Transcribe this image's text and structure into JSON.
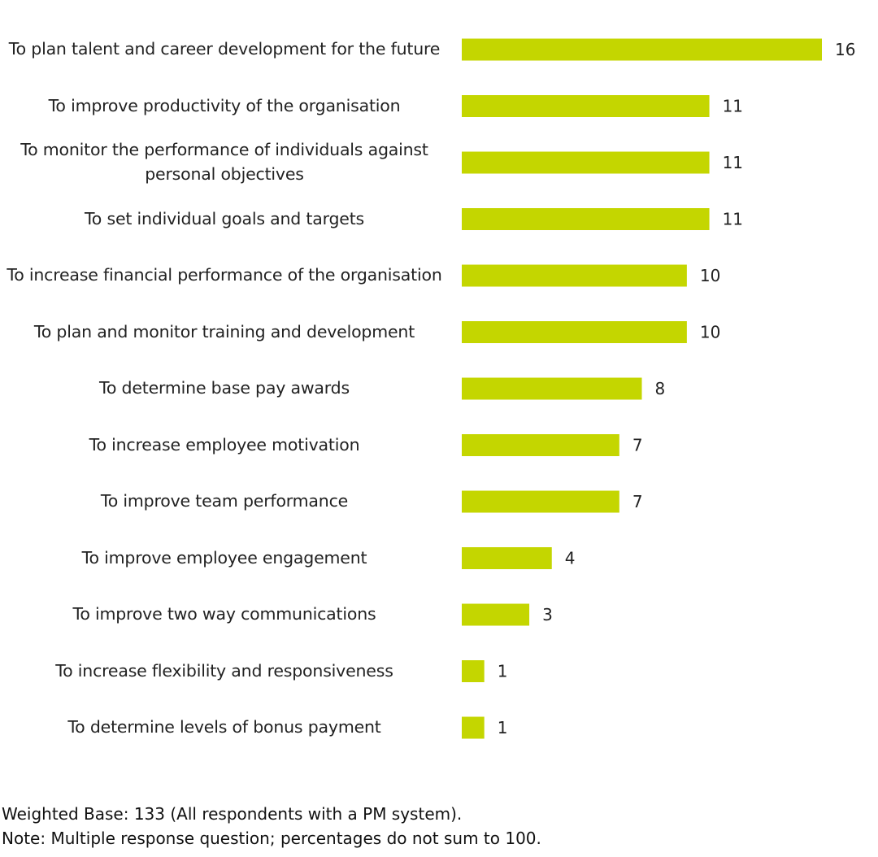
{
  "chart_data": {
    "type": "bar",
    "orientation": "horizontal",
    "categories": [
      "To plan talent and career development for the future",
      "To improve productivity of the organisation",
      "To monitor the performance of individuals against personal objectives",
      "To set individual goals and targets",
      "To increase financial performance of the organisation",
      "To plan and monitor training and development",
      "To determine base pay awards",
      "To increase employee motivation",
      "To improve team performance",
      "To improve employee engagement",
      "To improve two way communications",
      "To increase flexibility and responsiveness",
      "To determine levels of bonus payment"
    ],
    "values": [
      16,
      11,
      11,
      11,
      10,
      10,
      8,
      7,
      7,
      4,
      3,
      1,
      1
    ],
    "data_labels": true,
    "grid": false,
    "bar_color": "#c4d600",
    "xlim": [
      0,
      16
    ]
  },
  "footnotes": [
    "Weighted Base: 133 (All respondents with a PM system).",
    "Note: Multiple response question; percentages do not sum to 100."
  ]
}
